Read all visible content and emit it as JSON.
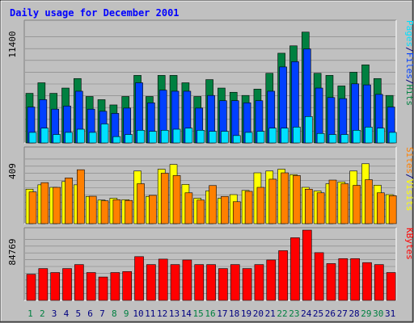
{
  "title": "Daily usage for December 2001",
  "colors": {
    "background": "#c0c0c0",
    "hits": "#008040",
    "files": "#0040ff",
    "pages": "#00e0ff",
    "visits": "#ffff00",
    "sites": "#ff8000",
    "kbytes": "#ff0000",
    "weekday_day": "#008040",
    "normal_day": "#000080"
  },
  "chart_data": [
    {
      "type": "bar",
      "name": "hits-files-pages",
      "categories": [
        "1",
        "2",
        "3",
        "4",
        "5",
        "6",
        "7",
        "8",
        "9",
        "10",
        "11",
        "12",
        "13",
        "14",
        "15",
        "16",
        "17",
        "18",
        "19",
        "20",
        "21",
        "22",
        "23",
        "24",
        "25",
        "26",
        "27",
        "28",
        "29",
        "30",
        "31"
      ],
      "ymax_label": "11400",
      "ylim": [
        0,
        11400
      ],
      "side_labels": [
        "Pages",
        "/",
        "Files",
        "/",
        "Hits"
      ],
      "series": [
        {
          "name": "Hits",
          "values": [
            4700,
            5700,
            4700,
            5200,
            6100,
            4400,
            4100,
            3600,
            4400,
            6400,
            4400,
            6400,
            6400,
            5700,
            4400,
            6000,
            5200,
            4800,
            4500,
            5100,
            6600,
            8500,
            9200,
            10500,
            6600,
            6400,
            5400,
            6700,
            7400,
            6100,
            4500
          ]
        },
        {
          "name": "Files",
          "values": [
            3400,
            4100,
            3200,
            3500,
            4900,
            3200,
            3000,
            2800,
            3300,
            5700,
            3800,
            5000,
            4900,
            4900,
            3300,
            4500,
            4000,
            4000,
            3800,
            4000,
            4900,
            7200,
            7700,
            8900,
            5200,
            4300,
            4200,
            5600,
            5500,
            4600,
            3400
          ]
        },
        {
          "name": "Pages",
          "values": [
            1000,
            1400,
            800,
            1000,
            1300,
            1000,
            1800,
            600,
            800,
            1200,
            1100,
            1200,
            1300,
            1400,
            1200,
            1100,
            1100,
            700,
            1000,
            1100,
            1400,
            1400,
            1500,
            2500,
            900,
            800,
            800,
            1200,
            1500,
            1400,
            1000
          ]
        }
      ]
    },
    {
      "type": "bar",
      "name": "visits-sites",
      "categories": [
        "1",
        "2",
        "3",
        "4",
        "5",
        "6",
        "7",
        "8",
        "9",
        "10",
        "11",
        "12",
        "13",
        "14",
        "15",
        "16",
        "17",
        "18",
        "19",
        "20",
        "21",
        "22",
        "23",
        "24",
        "25",
        "26",
        "27",
        "28",
        "29",
        "30",
        "31"
      ],
      "ymax_label": "409",
      "ylim": [
        0,
        409
      ],
      "side_labels": [
        "Sites",
        "/",
        "Visits"
      ],
      "series": [
        {
          "name": "Visits",
          "values": [
            190,
            214,
            200,
            232,
            214,
            150,
            130,
            140,
            132,
            290,
            150,
            300,
            326,
            216,
            140,
            181,
            140,
            160,
            183,
            280,
            290,
            300,
            270,
            200,
            180,
            220,
            230,
            290,
            330,
            212,
            160
          ]
        },
        {
          "name": "Sites",
          "values": [
            175,
            226,
            200,
            252,
            297,
            151,
            126,
            132,
            128,
            220,
            156,
            278,
            265,
            170,
            130,
            210,
            150,
            121,
            178,
            200,
            245,
            280,
            265,
            190,
            170,
            240,
            220,
            211,
            242,
            170,
            154
          ]
        }
      ]
    },
    {
      "type": "bar",
      "name": "kbytes",
      "categories": [
        "1",
        "2",
        "3",
        "4",
        "5",
        "6",
        "7",
        "8",
        "9",
        "10",
        "11",
        "12",
        "13",
        "14",
        "15",
        "16",
        "17",
        "18",
        "19",
        "20",
        "21",
        "22",
        "23",
        "24",
        "25",
        "26",
        "27",
        "28",
        "29",
        "30",
        "31"
      ],
      "ymax_label": "84769",
      "ylim": [
        0,
        84769
      ],
      "side_labels": [
        "KBytes"
      ],
      "series": [
        {
          "name": "KBytes",
          "values": [
            31500,
            38400,
            33600,
            38400,
            43200,
            33600,
            28200,
            33600,
            34800,
            52800,
            43200,
            49800,
            43200,
            48800,
            43200,
            43200,
            38400,
            43200,
            38400,
            43200,
            48800,
            60000,
            75600,
            84769,
            57600,
            44400,
            50400,
            50400,
            45600,
            43200,
            33600
          ]
        }
      ]
    }
  ],
  "weekend_days": [
    "1",
    "2",
    "8",
    "9",
    "15",
    "16",
    "22",
    "23",
    "29",
    "30"
  ]
}
